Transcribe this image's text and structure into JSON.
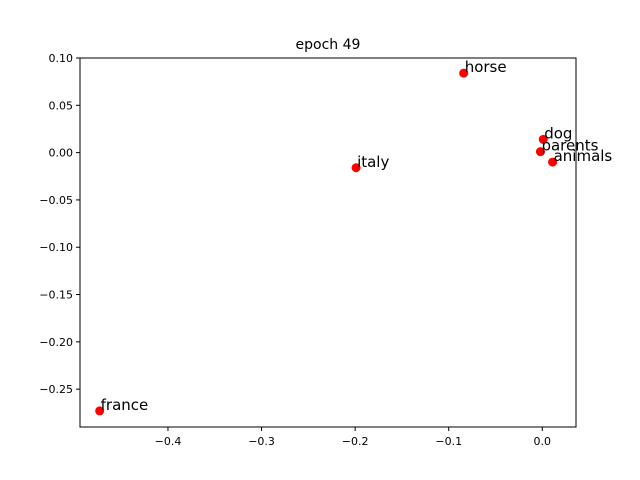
{
  "chart_data": {
    "type": "scatter",
    "title": "epoch 49",
    "xlabel": "",
    "ylabel": "",
    "xlim": [
      -0.494,
      0.036
    ],
    "ylim": [
      -0.29,
      0.1
    ],
    "xticks": [
      -0.4,
      -0.3,
      -0.2,
      -0.1,
      0.0
    ],
    "xtick_labels": [
      "−0.4",
      "−0.3",
      "−0.2",
      "−0.1",
      "0.0"
    ],
    "yticks": [
      0.1,
      0.05,
      0.0,
      -0.05,
      -0.1,
      -0.15,
      -0.2,
      -0.25
    ],
    "ytick_labels": [
      "0.10",
      "0.05",
      "0.00",
      "−0.05",
      "−0.10",
      "−0.15",
      "−0.20",
      "−0.25"
    ],
    "grid": false,
    "marker_color": "#ff0000",
    "points": [
      {
        "label": "horse",
        "x": -0.084,
        "y": 0.084
      },
      {
        "label": "dog",
        "x": 0.001,
        "y": 0.014
      },
      {
        "label": "parents",
        "x": -0.002,
        "y": 0.001
      },
      {
        "label": "animals",
        "x": 0.011,
        "y": -0.01
      },
      {
        "label": "italy",
        "x": -0.199,
        "y": -0.016
      },
      {
        "label": "france",
        "x": -0.473,
        "y": -0.273
      }
    ]
  }
}
